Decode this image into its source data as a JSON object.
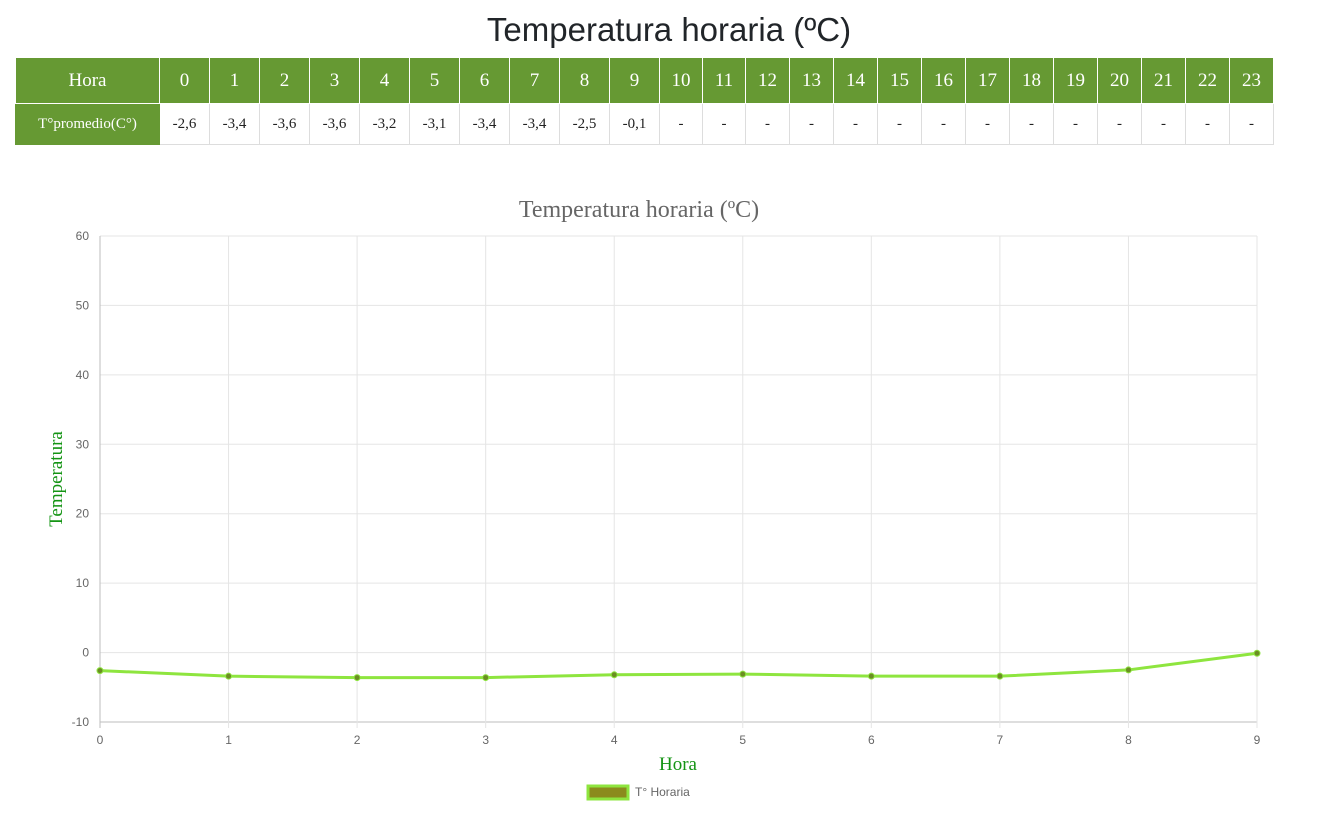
{
  "page": {
    "title": "Temperatura horaria (ºC)"
  },
  "table": {
    "header_label": "Hora",
    "row_label": "T°promedio(C°)",
    "hours": [
      "0",
      "1",
      "2",
      "3",
      "4",
      "5",
      "6",
      "7",
      "8",
      "9",
      "10",
      "11",
      "12",
      "13",
      "14",
      "15",
      "16",
      "17",
      "18",
      "19",
      "20",
      "21",
      "22",
      "23"
    ],
    "values": [
      "-2,6",
      "-3,4",
      "-3,6",
      "-3,6",
      "-3,2",
      "-3,1",
      "-3,4",
      "-3,4",
      "-2,5",
      "-0,1",
      "-",
      "-",
      "-",
      "-",
      "-",
      "-",
      "-",
      "-",
      "-",
      "-",
      "-",
      "-",
      "-",
      "-"
    ]
  },
  "colors": {
    "header_bg": "#669933",
    "line": "#8ee53f",
    "point": "#6b8e23",
    "axis_label": "#149414",
    "legend_fill": "#8b8b1d"
  },
  "chart_data": {
    "type": "line",
    "title": "Temperatura horaria (ºC)",
    "xlabel": "Hora",
    "ylabel": "Temperatura",
    "x": [
      0,
      1,
      2,
      3,
      4,
      5,
      6,
      7,
      8,
      9
    ],
    "series": [
      {
        "name": "T° Horaria",
        "values": [
          -2.6,
          -3.4,
          -3.6,
          -3.6,
          -3.2,
          -3.1,
          -3.4,
          -3.4,
          -2.5,
          -0.1
        ]
      }
    ],
    "ylim": [
      -10,
      60
    ],
    "yticks": [
      60,
      50,
      40,
      30,
      20,
      10,
      0,
      -10
    ],
    "grid": true,
    "legend_position": "bottom"
  }
}
